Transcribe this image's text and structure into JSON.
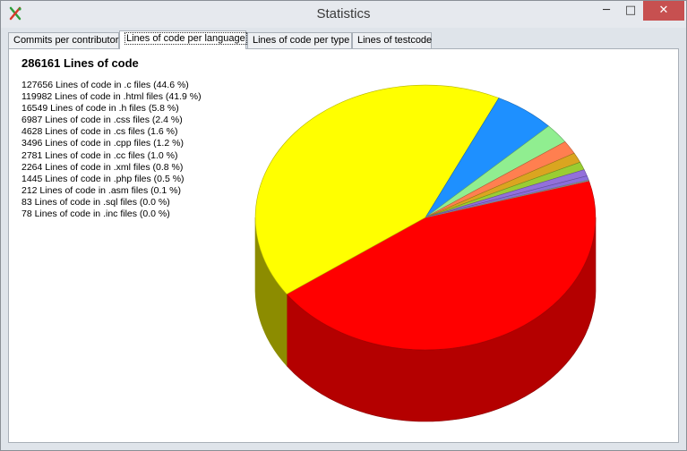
{
  "window": {
    "title": "Statistics",
    "close_glyph": "✕",
    "min_glyph": "─",
    "max_glyph": "□"
  },
  "tabs": [
    {
      "label": "Commits per contributor",
      "active": false
    },
    {
      "label": "Lines of code per language",
      "active": true
    },
    {
      "label": "Lines of code per type",
      "active": false
    },
    {
      "label": "Lines of testcode",
      "active": false
    }
  ],
  "summary": {
    "total": "286161 Lines of code"
  },
  "language_lines": [
    "127656 Lines of code in .c files (44.6 %)",
    "119982 Lines of code in .html files (41.9 %)",
    "16549 Lines of code in .h files (5.8 %)",
    "6987 Lines of code in .css files (2.4 %)",
    "4628 Lines of code in .cs files (1.6 %)",
    "3496 Lines of code in .cpp files (1.2 %)",
    "2781 Lines of code in .cc files (1.0 %)",
    "2264 Lines of code in .xml files (0.8 %)",
    "1445 Lines of code in .php files (0.5 %)",
    "212 Lines of code in .asm files (0.1 %)",
    "83 Lines of code in .sql files (0.0 %)",
    "78 Lines of code in .inc files (0.0 %)"
  ],
  "chart_data": {
    "type": "pie",
    "style": "3d-cylinder",
    "categories": [
      ".c",
      ".html",
      ".h",
      ".css",
      ".cs",
      ".cpp",
      ".cc",
      ".xml",
      ".php",
      ".asm",
      ".sql",
      ".inc"
    ],
    "values": [
      127656,
      119982,
      16549,
      6987,
      4628,
      3496,
      2781,
      2264,
      1445,
      212,
      83,
      78
    ],
    "colors": [
      "#ff0000",
      "#ffff00",
      "#1e90ff",
      "#90ee90",
      "#ff7f50",
      "#daa520",
      "#9acd32",
      "#9370db",
      "#8a6fdc",
      "#b0b0b0",
      "#a0a0a0",
      "#c0c0c0"
    ],
    "legend": "left-text-list"
  }
}
